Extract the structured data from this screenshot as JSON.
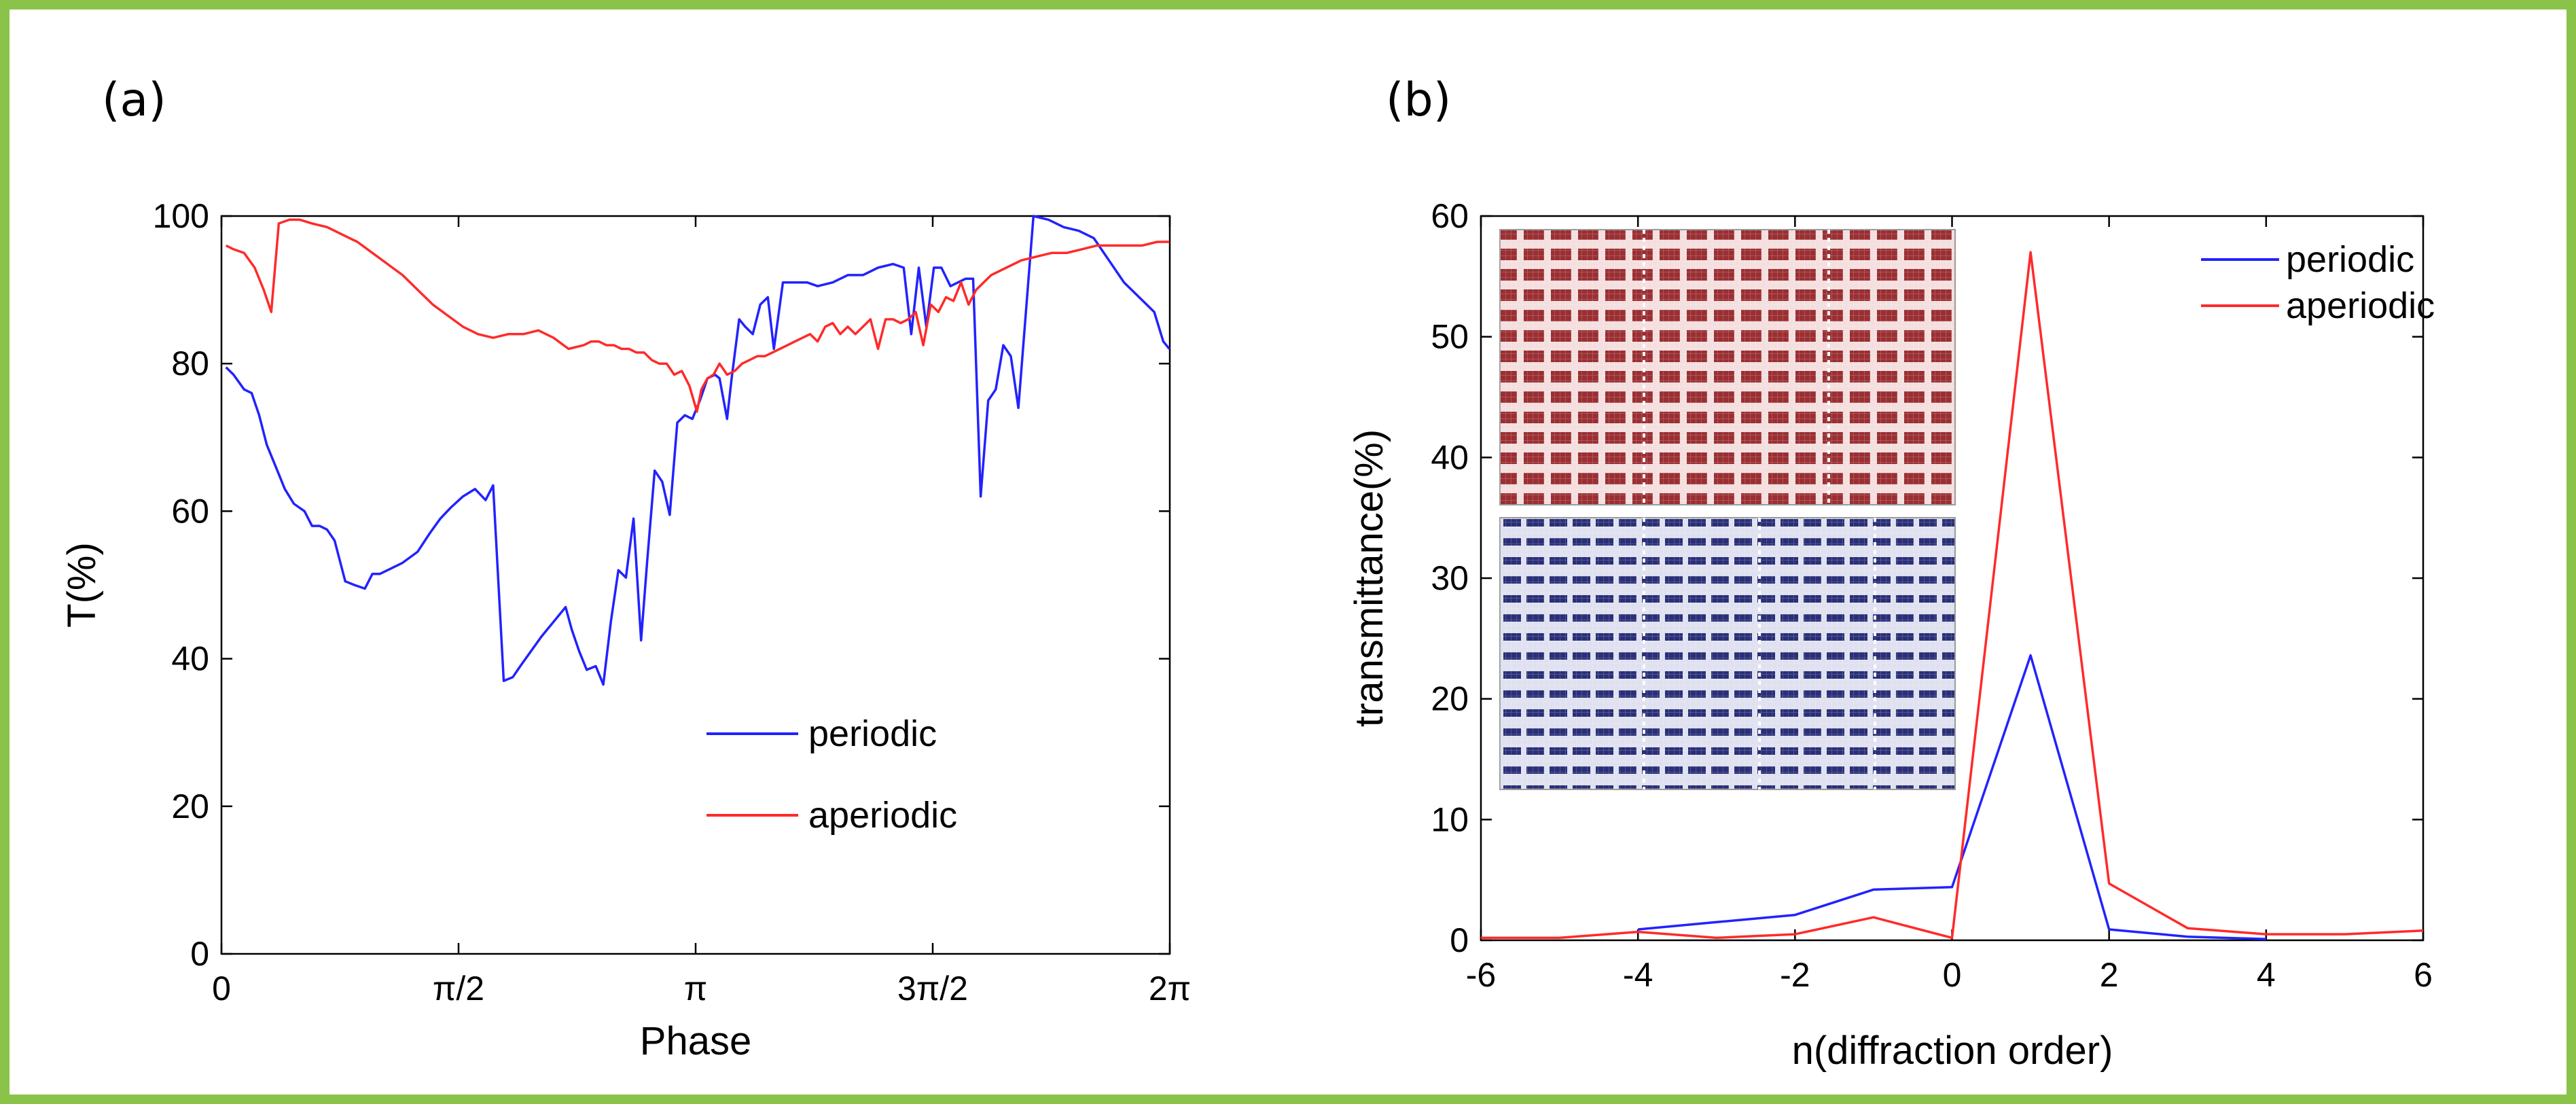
{
  "colors": {
    "frame": "#8bc34a",
    "periodic": "#2222ff",
    "aperiodic": "#ff2a2a",
    "inset_red": "#9a2f33",
    "inset_blue": "#2a2f77"
  },
  "chart_data": [
    {
      "panel": "(a)",
      "type": "line",
      "xlabel": "Phase",
      "ylabel": "T(%)",
      "xlim": [
        0,
        6.2832
      ],
      "ylim": [
        0,
        100
      ],
      "xticks": [
        0,
        1.5708,
        3.1416,
        4.7124,
        6.2832
      ],
      "xtick_labels": [
        "0",
        "π/2",
        "π",
        "3π/2",
        "2π"
      ],
      "yticks": [
        0,
        20,
        40,
        60,
        80,
        100
      ],
      "ytick_labels": [
        "0",
        "20",
        "40",
        "60",
        "80",
        "100"
      ],
      "legend": {
        "position": "lower-right",
        "entries": [
          "periodic",
          "aperiodic"
        ]
      },
      "series": [
        {
          "name": "periodic",
          "x": [
            0.03,
            0.08,
            0.15,
            0.2,
            0.25,
            0.3,
            0.36,
            0.42,
            0.48,
            0.55,
            0.6,
            0.65,
            0.7,
            0.75,
            0.82,
            0.88,
            0.95,
            1.0,
            1.05,
            1.1,
            1.2,
            1.3,
            1.38,
            1.45,
            1.52,
            1.6,
            1.68,
            1.75,
            1.8,
            1.87,
            1.93,
            1.98,
            2.05,
            2.12,
            2.2,
            2.28,
            2.32,
            2.37,
            2.42,
            2.48,
            2.53,
            2.58,
            2.63,
            2.68,
            2.73,
            2.78,
            2.82,
            2.87,
            2.92,
            2.97,
            3.02,
            3.07,
            3.12,
            3.17,
            3.22,
            3.27,
            3.3,
            3.35,
            3.38,
            3.43,
            3.47,
            3.52,
            3.57,
            3.62,
            3.66,
            3.72,
            3.8,
            3.88,
            3.95,
            4.05,
            4.15,
            4.25,
            4.35,
            4.45,
            4.52,
            4.57,
            4.62,
            4.67,
            4.72,
            4.77,
            4.83,
            4.88,
            4.93,
            4.98,
            5.03,
            5.08,
            5.13,
            5.18,
            5.23,
            5.28,
            5.38,
            5.48,
            5.58,
            5.68,
            5.78,
            5.88,
            5.98,
            6.08,
            6.18,
            6.24,
            6.28
          ],
          "y": [
            79.5,
            78.5,
            76.5,
            76,
            73,
            69,
            66,
            63,
            61,
            60,
            58,
            58,
            57.5,
            56,
            50.5,
            50,
            49.5,
            51.5,
            51.5,
            52,
            53,
            54.5,
            57,
            59,
            60.5,
            62,
            63,
            61.5,
            63.5,
            37,
            37.5,
            39,
            41,
            43,
            45,
            47,
            44,
            41,
            38.5,
            39,
            36.5,
            45,
            52,
            51,
            59,
            42.5,
            53,
            65.5,
            64,
            59.5,
            72,
            73,
            72.5,
            75,
            78,
            78.5,
            78,
            72.5,
            78,
            86,
            85,
            84,
            88,
            89,
            82,
            91,
            91,
            91,
            90.5,
            91,
            92,
            92,
            93,
            93.5,
            93,
            84,
            93,
            85,
            93,
            93,
            90.5,
            91,
            91.5,
            91.5,
            62,
            75,
            76.5,
            82.5,
            81,
            74,
            100,
            99.5,
            98.5,
            98,
            97,
            94,
            91,
            89,
            87,
            83,
            82
          ]
        },
        {
          "name": "aperiodic",
          "x": [
            0.03,
            0.08,
            0.15,
            0.22,
            0.28,
            0.33,
            0.38,
            0.45,
            0.52,
            0.6,
            0.7,
            0.8,
            0.9,
            1.0,
            1.1,
            1.2,
            1.3,
            1.4,
            1.5,
            1.6,
            1.7,
            1.8,
            1.9,
            2.0,
            2.1,
            2.2,
            2.3,
            2.4,
            2.45,
            2.5,
            2.55,
            2.6,
            2.65,
            2.7,
            2.75,
            2.8,
            2.85,
            2.9,
            2.95,
            3.0,
            3.05,
            3.1,
            3.15,
            3.18,
            3.22,
            3.26,
            3.3,
            3.35,
            3.4,
            3.45,
            3.5,
            3.55,
            3.6,
            3.65,
            3.7,
            3.75,
            3.8,
            3.85,
            3.9,
            3.95,
            4.0,
            4.05,
            4.1,
            4.15,
            4.2,
            4.25,
            4.3,
            4.35,
            4.4,
            4.45,
            4.5,
            4.55,
            4.6,
            4.65,
            4.7,
            4.75,
            4.8,
            4.85,
            4.9,
            4.95,
            5.0,
            5.05,
            5.1,
            5.2,
            5.3,
            5.4,
            5.5,
            5.6,
            5.7,
            5.8,
            5.9,
            6.0,
            6.1,
            6.2,
            6.28
          ],
          "y": [
            96,
            95.5,
            95,
            93,
            90,
            87,
            99,
            99.5,
            99.5,
            99,
            98.5,
            97.5,
            96.5,
            95,
            93.5,
            92,
            90,
            88,
            86.5,
            85,
            84,
            83.5,
            84,
            84,
            84.5,
            83.5,
            82,
            82.5,
            83,
            83,
            82.5,
            82.5,
            82,
            82,
            81.5,
            81.5,
            80.5,
            80,
            80,
            78.5,
            79,
            77,
            73.5,
            76.5,
            78,
            78.5,
            80,
            78.5,
            79,
            80,
            80.5,
            81,
            81,
            81.5,
            82,
            82.5,
            83,
            83.5,
            84,
            83,
            85,
            85.5,
            84,
            85,
            84,
            85,
            86,
            82,
            86,
            86,
            85.5,
            86,
            87,
            82.5,
            88,
            87,
            89,
            88.5,
            91,
            88,
            90,
            91,
            92,
            93,
            94,
            94.5,
            95,
            95,
            95.5,
            96,
            96,
            96,
            96,
            96.5,
            96.5
          ]
        }
      ]
    },
    {
      "panel": "(b)",
      "type": "line",
      "xlabel": "n(diffraction order)",
      "ylabel": "transmittance(%)",
      "xlim": [
        -6,
        6
      ],
      "ylim": [
        0,
        60
      ],
      "xticks": [
        -6,
        -4,
        -2,
        0,
        2,
        4,
        6
      ],
      "xtick_labels": [
        "-6",
        "-4",
        "-2",
        "0",
        "2",
        "4",
        "6"
      ],
      "yticks": [
        0,
        10,
        20,
        30,
        40,
        50,
        60
      ],
      "ytick_labels": [
        "0",
        "10",
        "20",
        "30",
        "40",
        "50",
        "60"
      ],
      "legend": {
        "position": "top-right",
        "entries": [
          "periodic",
          "aperiodic"
        ]
      },
      "inset": "two metasurface unit arrays: upper red aperiodic, lower blue periodic",
      "series": [
        {
          "name": "periodic",
          "x": [
            -4,
            -3,
            -2,
            -1,
            0,
            1,
            2,
            3,
            4
          ],
          "y": [
            0.9,
            1.5,
            2.1,
            4.2,
            4.4,
            23.6,
            0.9,
            0.3,
            0.1
          ]
        },
        {
          "name": "aperiodic",
          "x": [
            -6,
            -5,
            -4,
            -3,
            -2,
            -1,
            0,
            1,
            2,
            3,
            4,
            5,
            6
          ],
          "y": [
            0.2,
            0.2,
            0.7,
            0.2,
            0.5,
            1.9,
            0.2,
            57,
            4.7,
            1,
            0.5,
            0.5,
            0.8
          ]
        }
      ]
    }
  ]
}
